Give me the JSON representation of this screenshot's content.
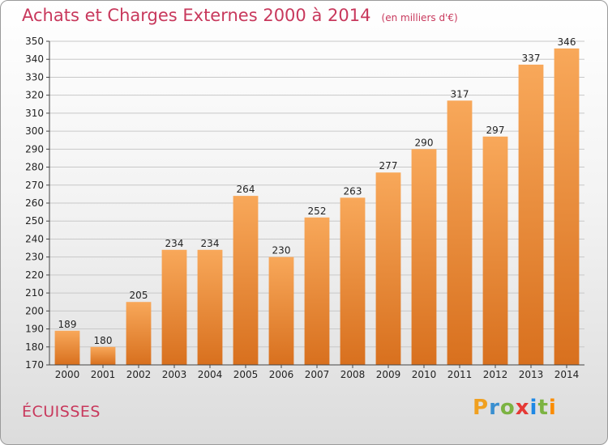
{
  "title": "Achats et Charges Externes 2000 à 2014",
  "unit": "(en milliers d'€)",
  "commune": "ÉCUISSES",
  "logo": {
    "letters": [
      "P",
      "r",
      "o",
      "x",
      "i",
      "t",
      "i"
    ],
    "colors": [
      "#f0a020",
      "#3a8fd0",
      "#7cb342",
      "#e53935",
      "#1e88e5",
      "#7cb342",
      "#fb8c00"
    ]
  },
  "colors": {
    "bar_light": "#f8a85a",
    "bar_dark": "#d8701e",
    "grid": "#c8c8c8",
    "axis": "#444444"
  },
  "chart_data": {
    "type": "bar",
    "categories": [
      "2000",
      "2001",
      "2002",
      "2003",
      "2004",
      "2005",
      "2006",
      "2007",
      "2008",
      "2009",
      "2010",
      "2011",
      "2012",
      "2013",
      "2014"
    ],
    "values": [
      189,
      180,
      205,
      234,
      234,
      264,
      230,
      252,
      263,
      277,
      290,
      317,
      297,
      337,
      346
    ],
    "ylim": [
      170,
      350
    ],
    "ytick_step": 10,
    "grid": true
  }
}
